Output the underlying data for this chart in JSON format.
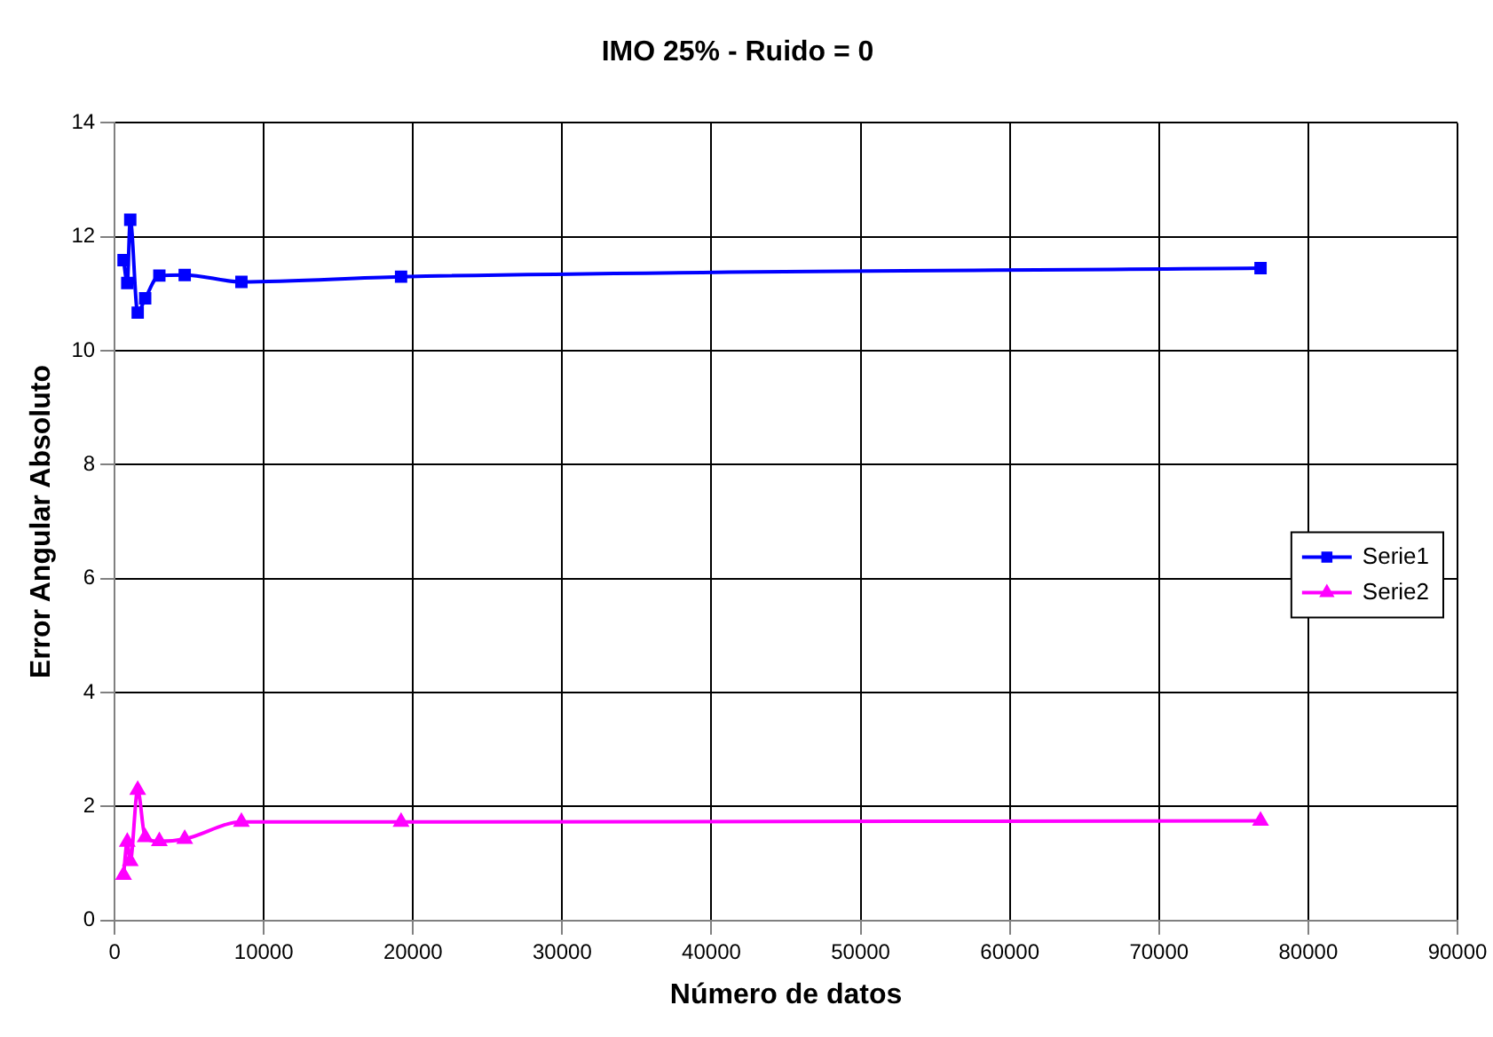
{
  "chart_data": {
    "type": "line",
    "title": "IMO 25% - Ruido = 0",
    "xlabel": "Número de datos",
    "ylabel": "Error Angular Absoluto",
    "x": [
      600,
      850,
      1050,
      1550,
      2050,
      3000,
      4700,
      8500,
      19200,
      76800
    ],
    "series": [
      {
        "name": "Serie1",
        "color": "#0000ff",
        "marker": "square",
        "values": [
          11.59,
          11.19,
          12.3,
          10.67,
          10.92,
          11.32,
          11.33,
          11.21,
          11.3,
          11.45
        ]
      },
      {
        "name": "Serie2",
        "color": "#ff00ff",
        "marker": "triangle",
        "values": [
          0.8,
          1.38,
          1.04,
          2.29,
          1.46,
          1.39,
          1.43,
          1.73,
          1.73,
          1.75
        ]
      }
    ],
    "xlim": [
      0,
      90000
    ],
    "xticks": [
      0,
      10000,
      20000,
      30000,
      40000,
      50000,
      60000,
      70000,
      80000,
      90000
    ],
    "ylim": [
      0,
      14
    ],
    "yticks": [
      0,
      2,
      4,
      6,
      8,
      10,
      12,
      14
    ],
    "grid": true,
    "legend": "right",
    "line_style": "solid"
  }
}
